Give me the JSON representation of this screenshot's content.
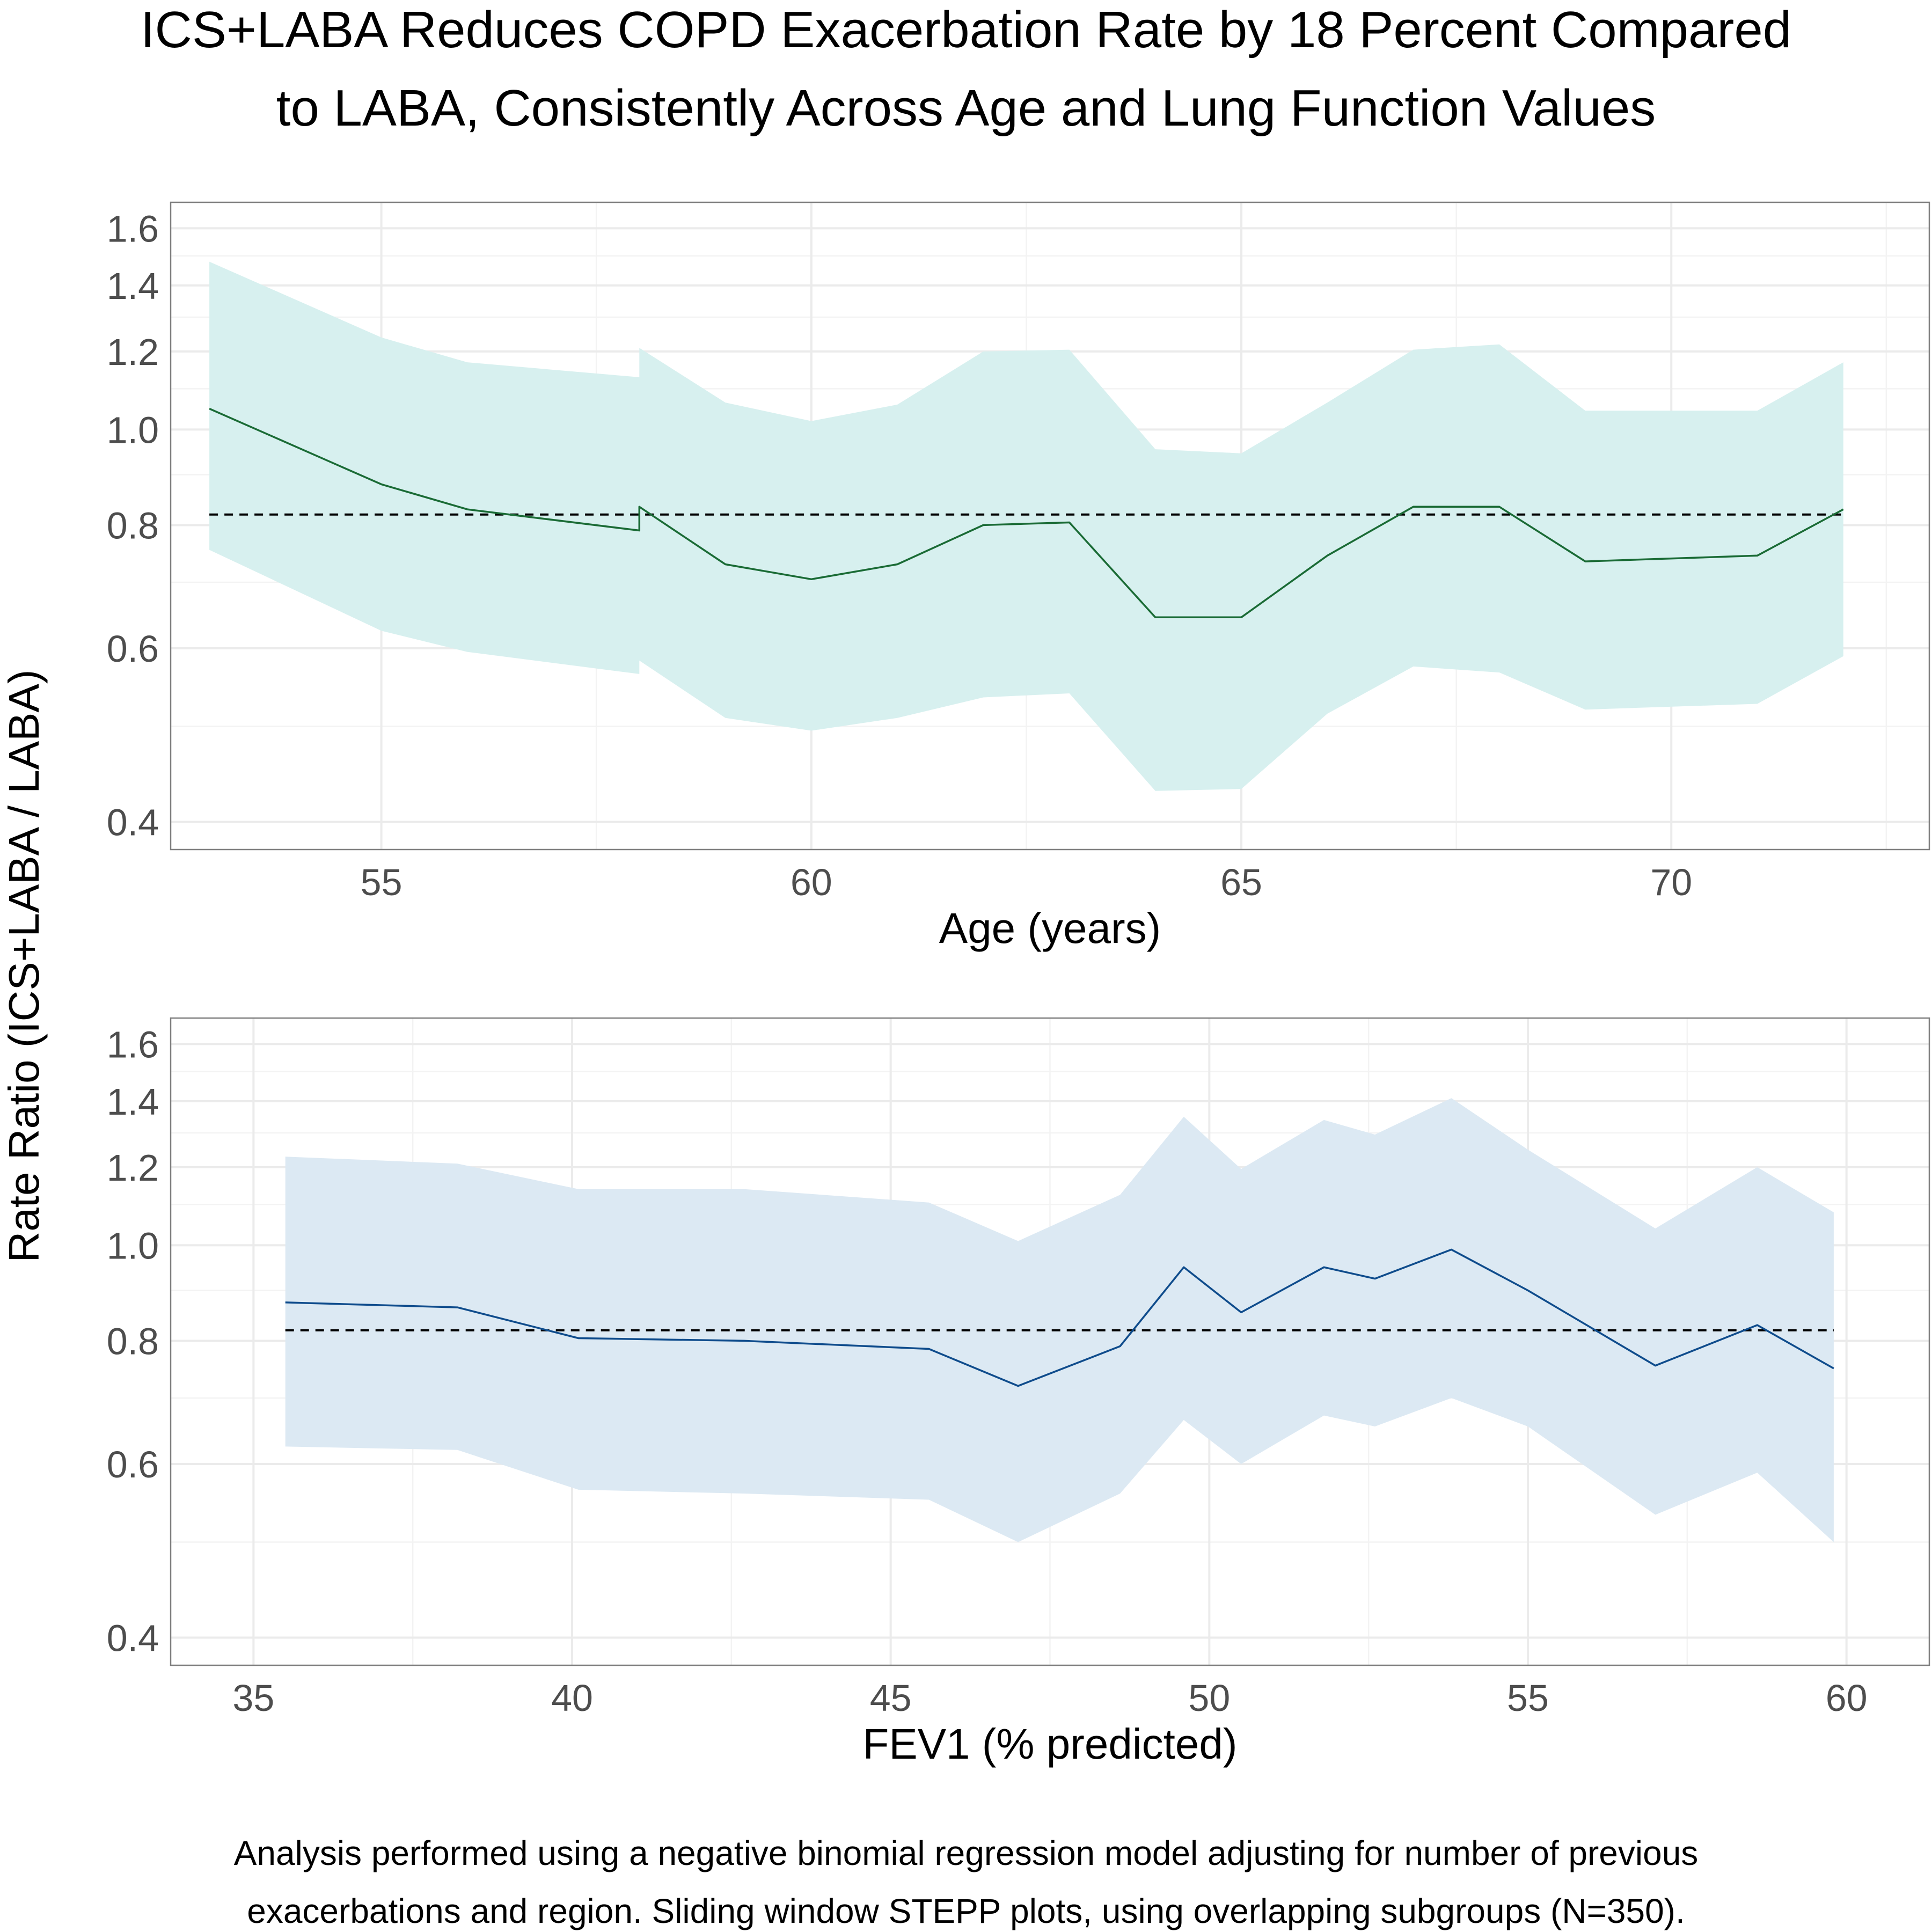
{
  "title_lines": [
    "ICS+LABA Reduces COPD Exacerbation Rate by 18 Percent Compared",
    "to LABA, Consistently Across Age and Lung Function Values"
  ],
  "caption_lines": [
    "Analysis performed using a negative binomial regression model adjusting for number of previous",
    "exacerbations and region. Sliding window STEPP plots, using overlapping subgroups (N=350)."
  ],
  "shared_ylabel": "Rate Ratio (ICS+LABA / LABA)",
  "chart_data": [
    {
      "type": "line",
      "title": "",
      "xlabel": "Age (years)",
      "ylabel": "Rate Ratio (ICS+LABA / LABA)",
      "y_scale": "log",
      "xlim": [
        52.55,
        73.0
      ],
      "ylim": [
        0.375,
        1.7
      ],
      "x_ticks": [
        55,
        60,
        65,
        70
      ],
      "x_tick_labels": [
        "55",
        "60",
        "65",
        "70"
      ],
      "y_ticks": [
        0.4,
        0.6,
        0.8,
        1.0,
        1.2,
        1.4,
        1.6
      ],
      "y_tick_labels": [
        "0.4",
        "0.6",
        "0.8",
        "1.0",
        "1.2",
        "1.4",
        "1.6"
      ],
      "grid": true,
      "reference_line": {
        "y": 0.82,
        "style": "dashed",
        "color": "#000000"
      },
      "line_color": "#1a6b35",
      "band_color": "#d7f0ef",
      "series": [
        {
          "x": [
            53.0,
            55.0,
            56.0,
            58.0,
            58.0,
            59.0,
            60.0,
            61.0,
            62.0,
            63.0,
            64.0,
            65.0,
            66.0,
            67.0,
            68.0,
            69.0,
            71.0,
            72.0
          ],
          "y": [
            1.05,
            0.88,
            0.83,
            0.79,
            0.835,
            0.73,
            0.705,
            0.73,
            0.8,
            0.805,
            0.645,
            0.645,
            0.745,
            0.835,
            0.835,
            0.735,
            0.745,
            0.83
          ],
          "lower": [
            0.755,
            0.625,
            0.595,
            0.565,
            0.583,
            0.51,
            0.495,
            0.51,
            0.535,
            0.54,
            0.43,
            0.432,
            0.515,
            0.575,
            0.567,
            0.52,
            0.527,
            0.589
          ],
          "upper": [
            1.48,
            1.24,
            1.17,
            1.13,
            1.21,
            1.065,
            1.02,
            1.06,
            1.2,
            1.205,
            0.955,
            0.946,
            1.065,
            1.205,
            1.22,
            1.045,
            1.045,
            1.17
          ]
        }
      ]
    },
    {
      "type": "line",
      "title": "",
      "xlabel": "FEV1 (% predicted)",
      "ylabel": "Rate Ratio (ICS+LABA / LABA)",
      "y_scale": "log",
      "xlim": [
        33.7,
        61.3
      ],
      "ylim": [
        0.375,
        1.7
      ],
      "x_ticks": [
        35,
        40,
        45,
        50,
        55,
        60
      ],
      "x_tick_labels": [
        "35",
        "40",
        "45",
        "50",
        "55",
        "60"
      ],
      "y_ticks": [
        0.4,
        0.6,
        0.8,
        1.0,
        1.2,
        1.4,
        1.6
      ],
      "y_tick_labels": [
        "0.4",
        "0.6",
        "0.8",
        "1.0",
        "1.2",
        "1.4",
        "1.6"
      ],
      "grid": true,
      "reference_line": {
        "y": 0.82,
        "style": "dashed",
        "color": "#000000"
      },
      "line_color": "#0f4c8c",
      "band_color": "#dce9f3",
      "series": [
        {
          "x": [
            35.5,
            38.2,
            40.1,
            42.7,
            45.6,
            47.0,
            48.6,
            49.6,
            50.5,
            51.8,
            52.6,
            53.8,
            55.0,
            57.0,
            58.6,
            59.8
          ],
          "y": [
            0.875,
            0.865,
            0.805,
            0.8,
            0.785,
            0.72,
            0.79,
            0.95,
            0.855,
            0.95,
            0.925,
            0.99,
            0.9,
            0.755,
            0.83,
            0.75
          ],
          "lower": [
            0.625,
            0.62,
            0.565,
            0.56,
            0.552,
            0.5,
            0.56,
            0.665,
            0.6,
            0.672,
            0.655,
            0.7,
            0.655,
            0.533,
            0.588,
            0.5
          ],
          "upper": [
            1.23,
            1.21,
            1.14,
            1.14,
            1.105,
            1.01,
            1.125,
            1.35,
            1.195,
            1.34,
            1.295,
            1.41,
            1.25,
            1.04,
            1.2,
            1.08
          ]
        }
      ]
    }
  ]
}
